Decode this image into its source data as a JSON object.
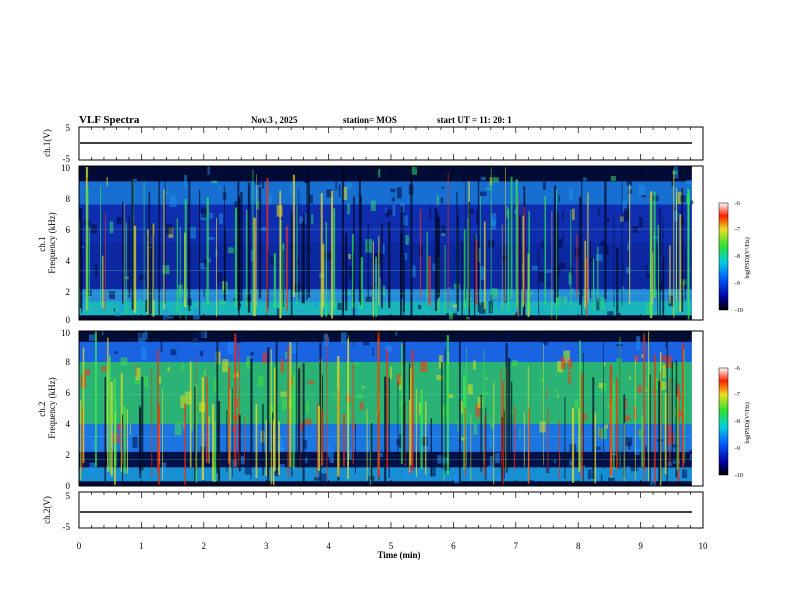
{
  "header": {
    "title": "VLF Spectra",
    "date": "Nov.3 , 2025",
    "station": "station= MOS",
    "start": "start UT = 11: 20: 1"
  },
  "chart_data": [
    {
      "type": "line",
      "ylabel": "ch.1(V)",
      "ylim": [
        -5,
        5
      ],
      "yticks": [
        "5",
        "-5"
      ],
      "value_level": 0,
      "xlim": [
        0,
        10
      ]
    },
    {
      "type": "heatmap",
      "ylabel": "ch.1\nFrequency (kHz)",
      "ylim": [
        0,
        10
      ],
      "yticks": [
        "0",
        "2",
        "4",
        "6",
        "8",
        "10"
      ],
      "xlim": [
        0,
        10
      ],
      "data_end_min": 9.82,
      "colorbar": {
        "label": "log(PSD)(V²/Hz)",
        "range": [
          -10,
          -6
        ],
        "ticks": [
          "-6",
          "-7",
          "-8",
          "-9",
          "-10"
        ]
      }
    },
    {
      "type": "heatmap",
      "ylabel": "ch.2\nFrequency (kHz)",
      "ylim": [
        0,
        10
      ],
      "yticks": [
        "0",
        "2",
        "4",
        "6",
        "8",
        "10"
      ],
      "xlim": [
        0,
        10
      ],
      "data_end_min": 9.82,
      "colorbar": {
        "label": "log(PSD)(V²/Hz)",
        "range": [
          -10,
          -6
        ],
        "ticks": [
          "-6",
          "-7",
          "-8",
          "-9",
          "-10"
        ]
      }
    },
    {
      "type": "line",
      "ylabel": "ch.2(V)",
      "ylim": [
        -5,
        5
      ],
      "yticks": [
        "5",
        "-5"
      ],
      "value_level": 0,
      "xlim": [
        0,
        10
      ]
    }
  ],
  "xaxis": {
    "label": "Time (min)",
    "ticks": [
      "0",
      "1",
      "2",
      "3",
      "4",
      "5",
      "6",
      "7",
      "8",
      "9",
      "10"
    ]
  },
  "colors": {
    "spec_dark": "#000033",
    "spec_blue": "#0033ff",
    "spec_green": "#33ff33",
    "spec_red": "#ff2200"
  }
}
